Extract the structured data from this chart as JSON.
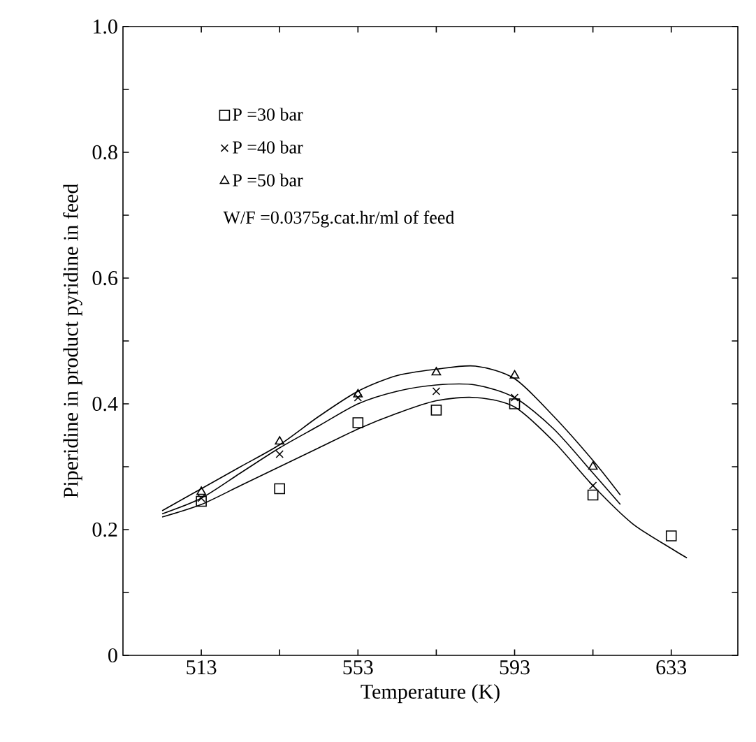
{
  "chart_data": {
    "type": "scatter",
    "xlabel": "Temperature (K)",
    "ylabel": "Piperidine in product pyridine in feed",
    "xlim": [
      493,
      650
    ],
    "ylim": [
      0,
      1.0
    ],
    "xticks": [
      513,
      {
        "value": 533,
        "label": null
      },
      553,
      {
        "value": 573,
        "label": null
      },
      593,
      {
        "value": 613,
        "label": null
      },
      633
    ],
    "yticks": [
      0,
      {
        "value": 0.1,
        "label": null
      },
      0.2,
      {
        "value": 0.3,
        "label": null
      },
      0.4,
      {
        "value": 0.5,
        "label": null
      },
      0.6,
      {
        "value": 0.7,
        "label": null
      },
      0.8,
      {
        "value": 0.9,
        "label": null
      },
      {
        "value": 1.0,
        "label": "1.0"
      }
    ],
    "grid": false,
    "legend": "top left",
    "annotations": [
      "W/F =0.0375g.cat.hr/ml of feed"
    ],
    "series": [
      {
        "name": "P =30 bar",
        "marker": "square",
        "color": "#000000",
        "x": [
          513,
          533,
          553,
          573,
          593,
          613,
          633
        ],
        "values": [
          0.245,
          0.265,
          0.37,
          0.39,
          0.4,
          0.255,
          0.19
        ]
      },
      {
        "name": "P =40 bar",
        "marker": "cross",
        "color": "#000000",
        "x": [
          513,
          533,
          553,
          573,
          593,
          613
        ],
        "values": [
          0.25,
          0.32,
          0.41,
          0.42,
          0.41,
          0.27
        ]
      },
      {
        "name": "P =50 bar",
        "marker": "triangle",
        "color": "#000000",
        "x": [
          513,
          533,
          553,
          573,
          593,
          613
        ],
        "values": [
          0.26,
          0.34,
          0.415,
          0.45,
          0.445,
          0.3
        ]
      },
      {
        "type": "line",
        "color": "#000000",
        "x": [
          503,
          513,
          523,
          533,
          543,
          553,
          563,
          573,
          583,
          593,
          603,
          613,
          623,
          633,
          637
        ],
        "values": [
          0.22,
          0.24,
          0.27,
          0.3,
          0.33,
          0.36,
          0.385,
          0.405,
          0.41,
          0.395,
          0.34,
          0.27,
          0.21,
          0.17,
          0.155
        ]
      },
      {
        "type": "line",
        "color": "#000000",
        "x": [
          503,
          513,
          523,
          533,
          543,
          553,
          563,
          573,
          583,
          593,
          603,
          613,
          620
        ],
        "values": [
          0.225,
          0.25,
          0.29,
          0.33,
          0.365,
          0.4,
          0.42,
          0.43,
          0.43,
          0.41,
          0.36,
          0.29,
          0.24
        ]
      },
      {
        "type": "line",
        "color": "#000000",
        "x": [
          503,
          513,
          523,
          533,
          543,
          553,
          563,
          573,
          583,
          593,
          603,
          613,
          620
        ],
        "values": [
          0.23,
          0.265,
          0.3,
          0.335,
          0.38,
          0.42,
          0.445,
          0.455,
          0.46,
          0.44,
          0.38,
          0.31,
          0.255
        ]
      }
    ]
  }
}
